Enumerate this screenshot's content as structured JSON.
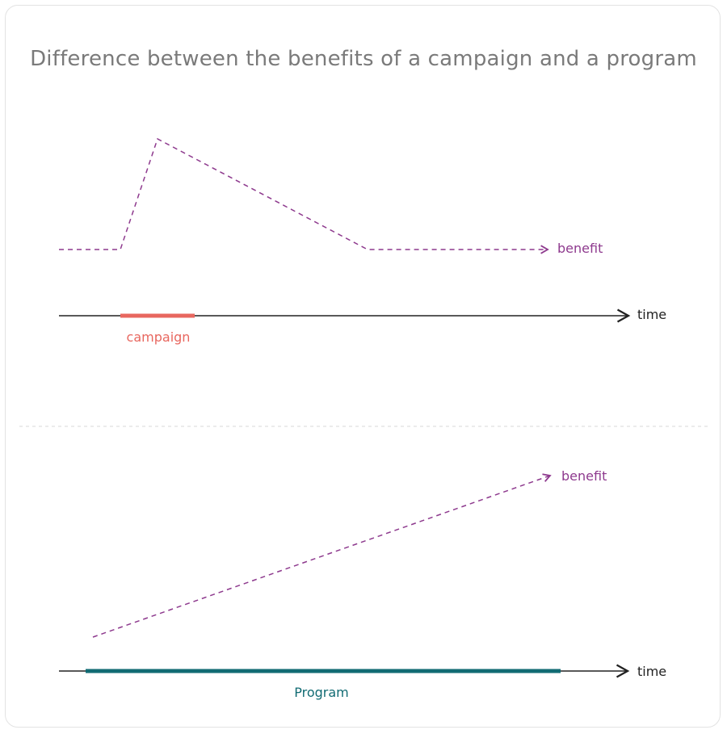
{
  "title": "Difference between the benefits of a campaign and a program",
  "campaign_panel": {
    "benefit_label": "benefit",
    "axis_label": "time",
    "bar_label": "campaign"
  },
  "program_panel": {
    "benefit_label": "benefit",
    "axis_label": "time",
    "bar_label": "Program"
  },
  "colors": {
    "title": "#7a7a7a",
    "benefit": "#8e3a8e",
    "axis": "#222222",
    "campaign": "#e8675f",
    "program": "#116b73",
    "divider": "#d8d8d8"
  }
}
